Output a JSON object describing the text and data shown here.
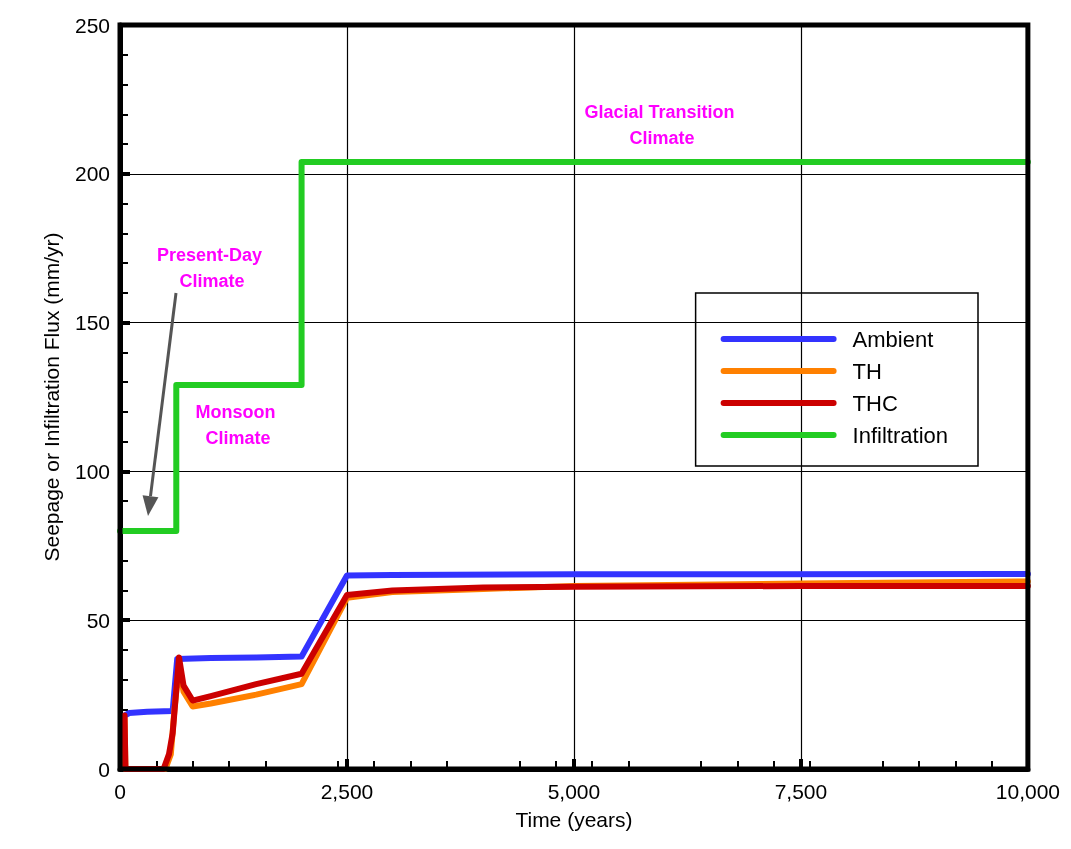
{
  "chart_data": {
    "type": "line",
    "xlabel": "Time (years)",
    "ylabel": "Seepage or Infiltration Flux (mm/yr)",
    "xlim": [
      0,
      10000
    ],
    "xticks": [
      0,
      {
        "value": 2500,
        "label": "2,500"
      },
      {
        "value": 5000,
        "label": "5,000"
      },
      {
        "value": 7500,
        "label": "7,500"
      },
      {
        "value": 10000,
        "label": "10,000"
      }
    ],
    "ylim": [
      0,
      250
    ],
    "yticks": [
      0,
      50,
      100,
      150,
      200,
      250
    ],
    "grid": true,
    "legend": "right",
    "line_style": "solid",
    "marker": "none",
    "annotations": [
      "Present-Day Climate",
      "Monsoon Climate",
      "Glacial Transition Climate"
    ],
    "series": [
      {
        "name": "Ambient",
        "color": "#3333ff",
        "x": [
          55,
          100,
          300,
          580,
          630,
          1000,
          1500,
          2000,
          2500,
          3000,
          5000,
          10000
        ],
        "values": [
          18,
          18.8,
          19.2,
          19.5,
          37,
          37.3,
          37.5,
          37.8,
          65,
          65.2,
          65.4,
          65.5
        ]
      },
      {
        "name": "TH",
        "color": "#ff8000",
        "x": [
          50,
          60,
          500,
          560,
          600,
          650,
          700,
          800,
          1000,
          1500,
          2000,
          2500,
          3000,
          4000,
          5000,
          7500,
          10000
        ],
        "values": [
          17,
          0,
          0,
          5,
          20,
          35,
          26,
          21,
          22,
          25,
          28.5,
          57.5,
          59.5,
          60.5,
          61.5,
          62.3,
          63
        ]
      },
      {
        "name": "THC",
        "color": "#cc0000",
        "x": [
          50,
          60,
          480,
          540,
          580,
          650,
          700,
          800,
          1000,
          1500,
          2000,
          2500,
          3000,
          4000,
          5000,
          7500,
          10000
        ],
        "values": [
          18,
          0,
          0,
          5,
          12,
          37.5,
          28,
          23,
          24.5,
          28.5,
          32,
          58.5,
          60,
          61,
          61.2,
          61.5,
          61.5
        ]
      },
      {
        "name": "Infiltration",
        "type": "step",
        "color": "#22cc22",
        "x": [
          0,
          620,
          2000,
          10000
        ],
        "values": [
          80,
          129,
          204,
          204
        ]
      }
    ]
  }
}
